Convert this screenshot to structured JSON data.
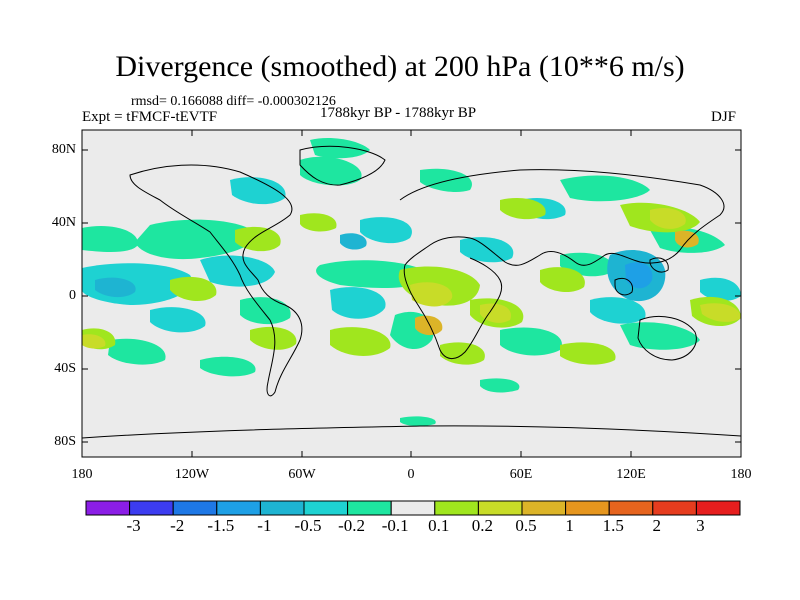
{
  "figure": {
    "title": "Divergence (smoothed) at 200 hPa (10**6 m/s)",
    "stats": "rmsd= 0.166088 diff= -0.000302126",
    "experiment": "Expt = tFMCF-tEVTF",
    "period": "1788kyr BP - 1788kyr BP",
    "season": "DJF"
  },
  "map": {
    "lat_ticks": [
      "80N",
      "40N",
      "0",
      "40S",
      "80S"
    ],
    "lon_ticks": [
      "180",
      "120W",
      "60W",
      "0",
      "60E",
      "120E",
      "180"
    ],
    "ocean_fill": "#ebebeb"
  },
  "colorbar": {
    "labels": [
      "-3",
      "-2",
      "-1.5",
      "-1",
      "-0.5",
      "-0.2",
      "-0.1",
      "0.1",
      "0.2",
      "0.5",
      "1",
      "1.5",
      "2",
      "3"
    ],
    "colors": [
      "#8b1ee6",
      "#3c3cf0",
      "#1e78e6",
      "#1ea0e6",
      "#1eb4d2",
      "#1ed2d2",
      "#1ee6a0",
      "#ebebeb",
      "#a0e61e",
      "#c8dc28",
      "#dcb428",
      "#e6961e",
      "#e6641e",
      "#e63c1e",
      "#e61e1e"
    ]
  }
}
